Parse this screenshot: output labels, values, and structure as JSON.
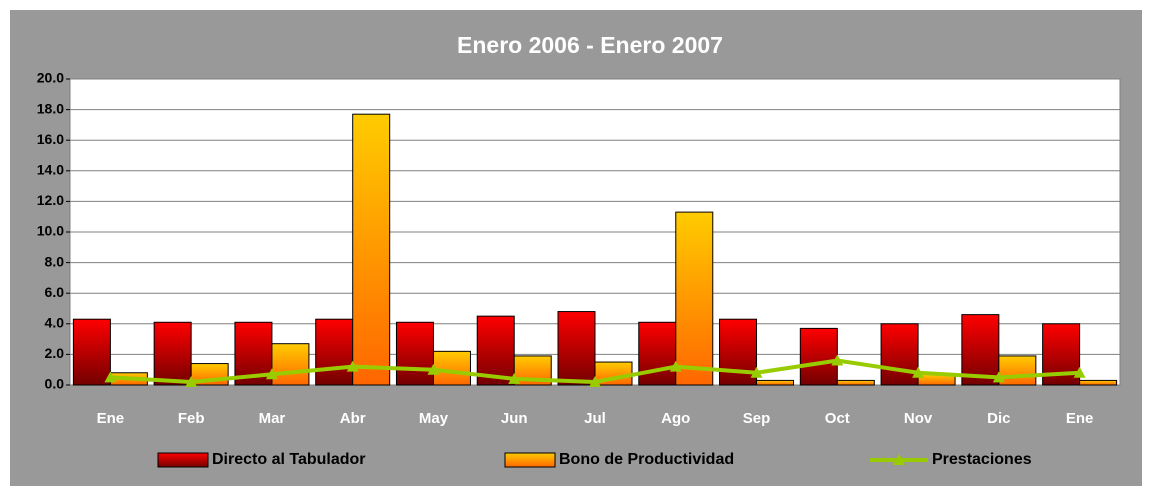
{
  "chart_data": {
    "type": "bar",
    "title": "Enero 2006 - Enero 2007",
    "categories": [
      "Ene",
      "Feb",
      "Mar",
      "Abr",
      "May",
      "Jun",
      "Jul",
      "Ago",
      "Sep",
      "Oct",
      "Nov",
      "Dic",
      "Ene"
    ],
    "series": [
      {
        "name": "Directo al Tabulador",
        "color": "#ff0000",
        "type": "bar",
        "values": [
          4.3,
          4.1,
          4.1,
          4.3,
          4.1,
          4.5,
          4.8,
          4.1,
          4.3,
          3.7,
          4.0,
          4.6,
          4.0
        ]
      },
      {
        "name": "Bono de Productividad",
        "color": "#ffcc00",
        "type": "bar",
        "values": [
          0.8,
          1.4,
          2.7,
          17.7,
          2.2,
          1.9,
          1.5,
          11.3,
          0.3,
          0.3,
          0.7,
          1.9,
          0.3
        ]
      },
      {
        "name": "Prestaciones",
        "color": "#99cc00",
        "type": "line",
        "values": [
          0.5,
          0.2,
          0.7,
          1.2,
          1.0,
          0.4,
          0.2,
          1.2,
          0.8,
          1.6,
          0.8,
          0.5,
          0.8
        ]
      }
    ],
    "ylim": [
      0,
      20
    ],
    "yticks": [
      {
        "value": 0,
        "label": "0.0"
      },
      {
        "value": 2,
        "label": "2.0"
      },
      {
        "value": 4,
        "label": "4.0"
      },
      {
        "value": 6,
        "label": "6.0"
      },
      {
        "value": 8,
        "label": "8.0"
      },
      {
        "value": 10,
        "label": "10.0"
      },
      {
        "value": 12,
        "label": "12.0"
      },
      {
        "value": 14,
        "label": "14.0"
      },
      {
        "value": 16,
        "label": "16.0"
      },
      {
        "value": 18,
        "label": "18.0"
      },
      {
        "value": 20,
        "label": "20.0"
      }
    ],
    "grid": true,
    "legend": "bottom"
  }
}
